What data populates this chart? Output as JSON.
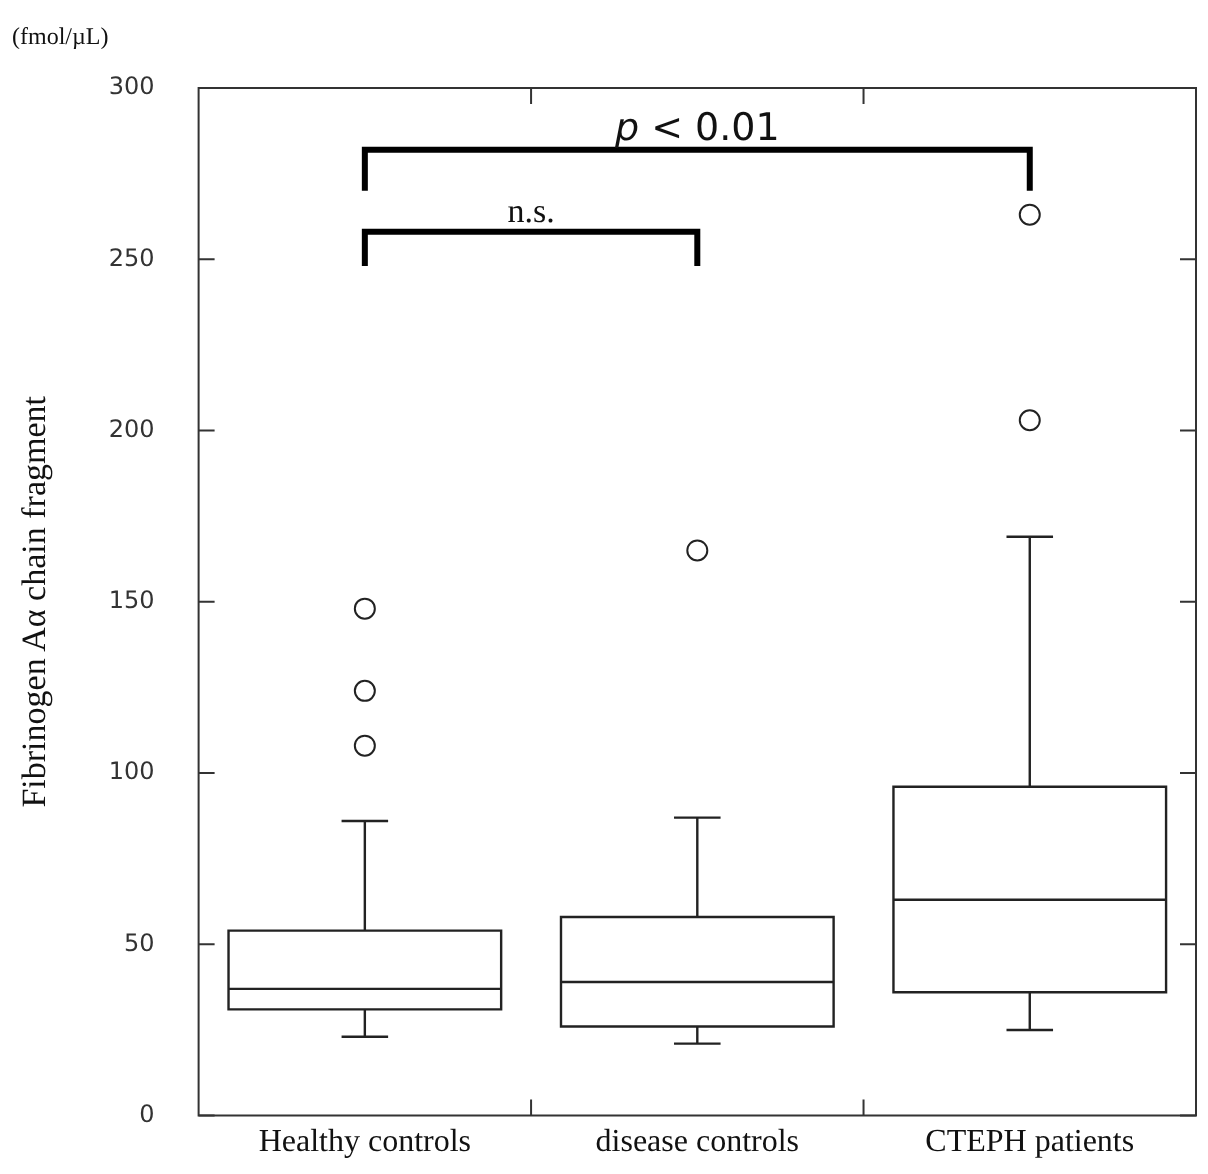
{
  "chart_data": {
    "type": "box",
    "categories": [
      "Healthy controls",
      "disease controls",
      "CTEPH patients"
    ],
    "ylabel": "Fibrinogen Aα chain fragment",
    "annotations": [
      "(fmol/µL)",
      "n.s.",
      "p < 0.01"
    ],
    "boxes": [
      {
        "low": 23,
        "q1": 31,
        "median": 37,
        "q3": 54,
        "high": 86,
        "outliers": [
          108,
          124,
          148
        ]
      },
      {
        "low": 21,
        "q1": 26,
        "median": 39,
        "q3": 58,
        "high": 87,
        "outliers": [
          165
        ]
      },
      {
        "low": 25,
        "q1": 36,
        "median": 63,
        "q3": 96,
        "high": 169,
        "outliers": [
          203,
          263
        ]
      }
    ],
    "color": "#222222",
    "ylim": [
      0,
      300
    ],
    "yticks": [
      0,
      50,
      100,
      150,
      200,
      250,
      300
    ],
    "grid": false,
    "legend": false
  }
}
